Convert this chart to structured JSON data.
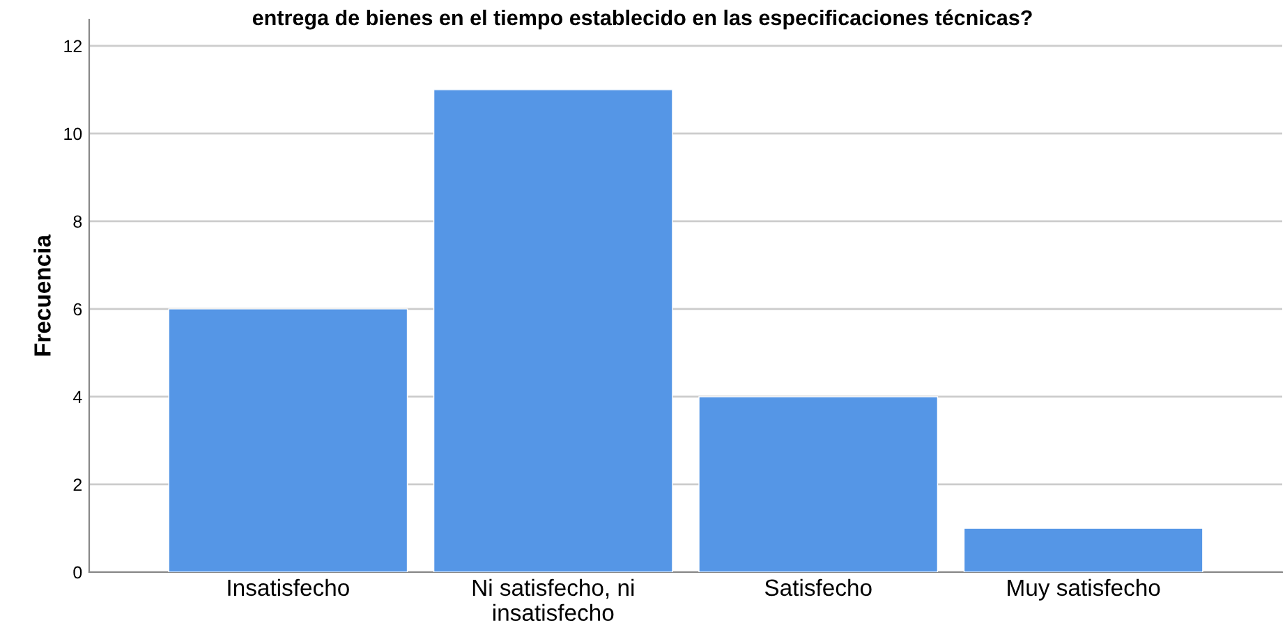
{
  "chart_data": {
    "type": "bar",
    "title": "entrega de bienes en el tiempo establecido en las especificaciones técnicas?",
    "ylabel": "Frecuencia",
    "categories": [
      "Insatisfecho",
      "Ni satisfecho, ni\ninsatisfecho",
      "Satisfecho",
      "Muy satisfecho"
    ],
    "values": [
      6,
      11,
      4,
      1
    ],
    "color": "#5596e6",
    "ylim": [
      0,
      12.6
    ],
    "yticks": [
      0,
      2,
      4,
      6,
      8,
      10,
      12
    ],
    "grid": "y",
    "legend": false
  }
}
